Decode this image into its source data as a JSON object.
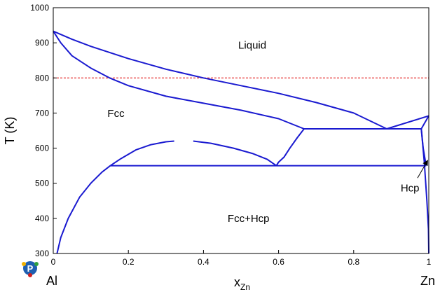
{
  "chart_data": {
    "type": "line",
    "title": "",
    "xlabel": "x",
    "xlabel_sub": "Zn",
    "ylabel": "T (K)",
    "xlim": [
      0,
      1
    ],
    "ylim": [
      300,
      1000
    ],
    "xticks": [
      0,
      0.2,
      0.4,
      0.6,
      0.8,
      1
    ],
    "xtick_labels": [
      "0",
      "0.2",
      "0.4",
      "0.6",
      "0.8",
      "1"
    ],
    "yticks": [
      300,
      400,
      500,
      600,
      700,
      800,
      900,
      1000
    ],
    "ytick_labels": [
      "300",
      "400",
      "500",
      "600",
      "700",
      "800",
      "900",
      "1000"
    ],
    "grid": false,
    "end_labels": {
      "left": "Al",
      "right": "Zn"
    },
    "region_labels": [
      {
        "text": "Liquid",
        "x": 0.53,
        "y": 883
      },
      {
        "text": "Fcc",
        "x": 0.167,
        "y": 689
      },
      {
        "text": "Fcc+Hcp",
        "x": 0.52,
        "y": 390
      },
      {
        "text": "Hcp",
        "x": 0.95,
        "y": 476
      }
    ],
    "reference_line": {
      "y": 800,
      "color": "#e00000",
      "style": "dashed"
    },
    "curve_color": "#1a1ad0",
    "series": [
      {
        "points": [
          [
            0,
            933
          ],
          [
            0.05,
            910
          ],
          [
            0.1,
            890
          ],
          [
            0.2,
            855
          ],
          [
            0.3,
            825
          ],
          [
            0.4,
            800
          ],
          [
            0.5,
            778
          ],
          [
            0.6,
            756
          ],
          [
            0.7,
            730
          ],
          [
            0.8,
            700
          ],
          [
            0.888,
            655
          ]
        ]
      },
      {
        "points": [
          [
            0,
            933
          ],
          [
            0.02,
            900
          ],
          [
            0.05,
            863
          ],
          [
            0.1,
            828
          ],
          [
            0.15,
            800
          ],
          [
            0.2,
            778
          ],
          [
            0.3,
            748
          ],
          [
            0.4,
            728
          ],
          [
            0.5,
            708
          ],
          [
            0.6,
            684
          ],
          [
            0.668,
            655
          ]
        ]
      },
      {
        "points": [
          [
            0.668,
            655
          ],
          [
            0.65,
            630
          ],
          [
            0.63,
            600
          ],
          [
            0.615,
            575
          ],
          [
            0.6,
            560
          ],
          [
            0.594,
            550
          ]
        ]
      },
      {
        "points": [
          [
            0.152,
            550
          ],
          [
            0.18,
            570
          ],
          [
            0.22,
            595
          ],
          [
            0.26,
            610
          ],
          [
            0.3,
            618
          ],
          [
            0.322,
            620
          ]
        ]
      },
      {
        "points": [
          [
            0.373,
            620
          ],
          [
            0.42,
            614
          ],
          [
            0.48,
            600
          ],
          [
            0.53,
            585
          ],
          [
            0.57,
            568
          ],
          [
            0.594,
            550
          ]
        ]
      },
      {
        "points": [
          [
            0.01,
            300
          ],
          [
            0.02,
            345
          ],
          [
            0.04,
            400
          ],
          [
            0.07,
            460
          ],
          [
            0.1,
            500
          ],
          [
            0.13,
            532
          ],
          [
            0.152,
            550
          ]
        ]
      },
      {
        "points": [
          [
            0.152,
            550
          ],
          [
            0.993,
            550
          ]
        ]
      },
      {
        "points": [
          [
            0.668,
            655
          ],
          [
            0.98,
            655
          ]
        ]
      },
      {
        "points": [
          [
            0.888,
            655
          ],
          [
            1,
            692
          ]
        ]
      },
      {
        "points": [
          [
            0.888,
            655
          ],
          [
            0.98,
            655
          ],
          [
            1,
            692
          ]
        ]
      },
      {
        "points": [
          [
            0.98,
            655
          ],
          [
            0.985,
            600
          ],
          [
            0.993,
            550
          ]
        ]
      },
      {
        "points": [
          [
            0.98,
            655
          ],
          [
            0.988,
            560
          ],
          [
            0.995,
            450
          ],
          [
            0.999,
            370
          ],
          [
            1,
            300
          ]
        ]
      }
    ],
    "annotation_arrow": {
      "from": [
        0.97,
        515
      ],
      "to": [
        0.997,
        565
      ]
    }
  }
}
